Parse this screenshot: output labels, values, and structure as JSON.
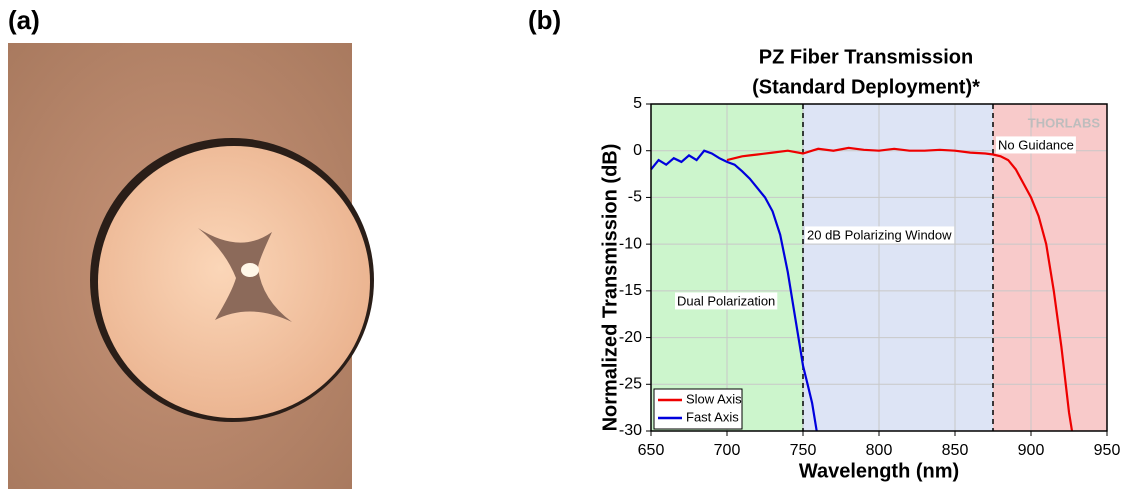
{
  "panels": {
    "a": "(a)",
    "b": "(b)"
  },
  "chart_data": {
    "type": "line",
    "title": "PZ Fiber Transmission",
    "subtitle": "(Standard Deployment)*",
    "x_label": "Wavelength (nm)",
    "y_label": "Normalized Transmission (dB)",
    "watermark": "THORLABS",
    "xlim": [
      650,
      950
    ],
    "xticks": [
      650,
      700,
      750,
      800,
      850,
      900,
      950
    ],
    "ylim": [
      -30,
      5
    ],
    "yticks": [
      -30,
      -25,
      -20,
      -15,
      -10,
      -5,
      0,
      5
    ],
    "grid": true,
    "legend": "lower left",
    "regions": [
      {
        "label": "Dual Polarization",
        "range": [
          650,
          750
        ],
        "color": "#ccf5cc"
      },
      {
        "label": "20 dB Polarizing Window",
        "range": [
          750,
          875
        ],
        "color": "#dde4f5"
      },
      {
        "label": "No Guidance",
        "range": [
          875,
          950
        ],
        "color": "#f8caca"
      }
    ],
    "series": [
      {
        "name": "Slow Axis",
        "color": "#ee0000",
        "x": [
          700,
          705,
          710,
          715,
          720,
          730,
          740,
          750,
          760,
          770,
          780,
          790,
          800,
          810,
          820,
          830,
          840,
          850,
          860,
          870,
          875,
          880,
          885,
          890,
          895,
          900,
          905,
          910,
          915,
          920,
          925,
          927
        ],
        "values": [
          -1,
          -0.8,
          -0.6,
          -0.5,
          -0.4,
          -0.2,
          0,
          -0.3,
          0.2,
          0,
          0.3,
          0.1,
          0,
          0.2,
          0,
          0,
          0.1,
          0,
          -0.2,
          -0.3,
          -0.4,
          -0.6,
          -1,
          -2,
          -3.5,
          -5,
          -7,
          -10,
          -15,
          -21,
          -28,
          -30
        ]
      },
      {
        "name": "Fast Axis",
        "color": "#0000dd",
        "x": [
          650,
          655,
          660,
          665,
          670,
          675,
          680,
          685,
          690,
          695,
          700,
          705,
          710,
          715,
          720,
          725,
          730,
          735,
          740,
          745,
          748,
          750,
          753,
          756,
          759
        ],
        "values": [
          -2,
          -1,
          -1.5,
          -0.8,
          -1.2,
          -0.5,
          -1,
          0,
          -0.3,
          -0.8,
          -1.2,
          -1.5,
          -2.2,
          -3,
          -4,
          -5,
          -6.5,
          -9,
          -13,
          -18,
          -21,
          -23,
          -25,
          -27,
          -30
        ]
      }
    ]
  }
}
